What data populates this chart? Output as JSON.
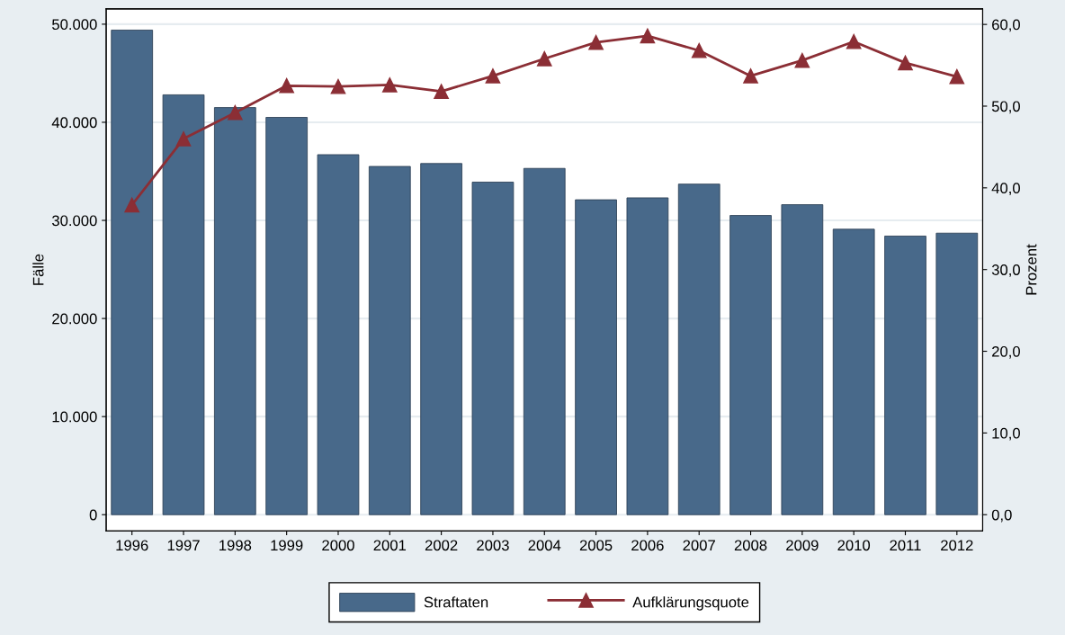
{
  "chart_data": {
    "type": "bar",
    "categories": [
      "1996",
      "1997",
      "1998",
      "1999",
      "2000",
      "2001",
      "2002",
      "2003",
      "2004",
      "2005",
      "2006",
      "2007",
      "2008",
      "2009",
      "2010",
      "2011",
      "2012"
    ],
    "series": [
      {
        "name": "Straftaten",
        "color": "#48698a",
        "values": [
          49400,
          42800,
          41500,
          40500,
          36700,
          35500,
          35800,
          33900,
          35300,
          32100,
          32300,
          33700,
          30500,
          31600,
          29100,
          28400,
          28700
        ]
      },
      {
        "name": "Aufklärungsquote",
        "type": "line",
        "axis": "y2",
        "color": "#8b2e35",
        "marker": "triangle",
        "values": [
          37.9,
          46.0,
          49.2,
          52.5,
          52.4,
          52.6,
          51.8,
          53.7,
          55.8,
          57.8,
          58.6,
          56.8,
          53.7,
          55.6,
          57.9,
          55.3,
          53.6
        ]
      }
    ],
    "ylabel": "Fälle",
    "y2label": "Prozent",
    "ylim": [
      -1650,
      51560
    ],
    "yticks": [
      {
        "value": 0,
        "label": "0"
      },
      {
        "value": 10000,
        "label": "10.000"
      },
      {
        "value": 20000,
        "label": "20.000"
      },
      {
        "value": 30000,
        "label": "30.000"
      },
      {
        "value": 40000,
        "label": "40.000"
      },
      {
        "value": 50000,
        "label": "50.000"
      }
    ],
    "y2lim": [
      -1.98,
      61.9
    ],
    "y2ticks": [
      {
        "value": 0,
        "label": "0,0"
      },
      {
        "value": 10,
        "label": "10,0"
      },
      {
        "value": 20,
        "label": "20,0"
      },
      {
        "value": 30,
        "label": "30,0"
      },
      {
        "value": 40,
        "label": "40,0"
      },
      {
        "value": 50,
        "label": "50,0"
      },
      {
        "value": 60,
        "label": "60,0"
      }
    ],
    "grid": "y",
    "legend": "bottom"
  }
}
